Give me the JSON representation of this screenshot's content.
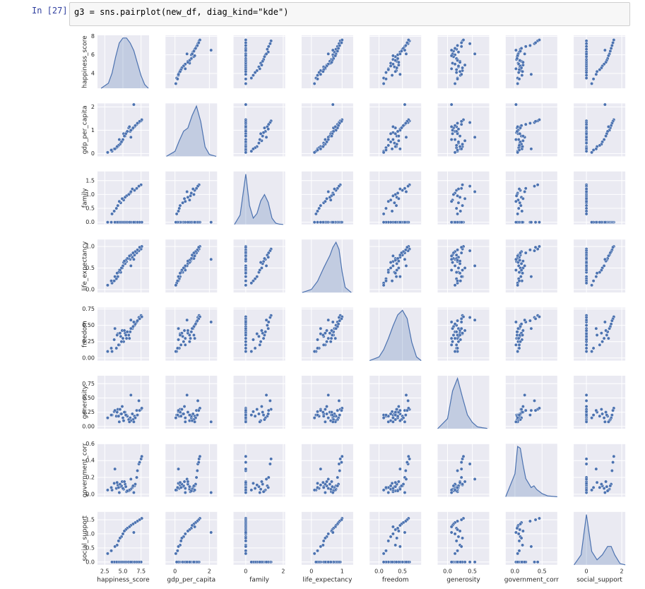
{
  "notebook": {
    "prompt": "In [27]:",
    "code": "g3 = sns.pairplot(new_df, diag_kind=\"kde\")"
  },
  "chart_data": {
    "type": "pairplot",
    "color": "#4c72b0",
    "grid": true,
    "variables": [
      "happiness_score",
      "gdp_per_capita",
      "family",
      "life_expectancy",
      "freedom",
      "generosity",
      "government_corr",
      "social_support"
    ],
    "axes": [
      {
        "xlim": [
          1.5,
          8.6
        ],
        "xticks": [
          {
            "value": 2.5,
            "label": "2.5"
          },
          {
            "value": 5,
            "label": "5.0"
          },
          {
            "value": 7.5,
            "label": "7.5"
          }
        ],
        "ylim": [
          2.4,
          8.1
        ],
        "yticks": [
          4,
          6,
          8
        ]
      },
      {
        "xlim": [
          -0.55,
          2.45
        ],
        "xticks": [
          0,
          2
        ],
        "ylim": [
          -0.12,
          2.15
        ],
        "yticks": [
          0,
          1,
          2
        ]
      },
      {
        "xlim": [
          -0.65,
          2.1
        ],
        "xticks": [
          0,
          2
        ],
        "ylim": [
          -0.08,
          1.83
        ],
        "yticks": [
          {
            "value": 0,
            "label": "0.0"
          },
          {
            "value": 0.5,
            "label": "0.5"
          },
          {
            "value": 1,
            "label": "1.0"
          },
          {
            "value": 1.5,
            "label": "1.5"
          }
        ]
      },
      {
        "xlim": [
          -0.32,
          1.36
        ],
        "xticks": [
          0,
          1
        ],
        "ylim": [
          -0.07,
          1.16
        ],
        "yticks": [
          {
            "value": 0,
            "label": "0.0"
          },
          {
            "value": 0.5,
            "label": "0.5"
          },
          {
            "value": 1,
            "label": "1.0"
          }
        ]
      },
      {
        "xlim": [
          -0.2,
          0.9
        ],
        "xticks": [
          {
            "value": 0,
            "label": "0.0"
          },
          0.5
        ],
        "ylim": [
          -0.04,
          0.77
        ],
        "yticks": [
          {
            "value": 0,
            "label": "0.00"
          },
          0.25,
          {
            "value": 0.5,
            "label": "0.50"
          },
          0.75
        ]
      },
      {
        "xlim": [
          -0.2,
          0.84
        ],
        "xticks": [
          {
            "value": 0,
            "label": "0.0"
          },
          0.5
        ],
        "ylim": [
          -0.04,
          0.89
        ],
        "yticks": [
          {
            "value": 0,
            "label": "0.00"
          },
          0.25,
          {
            "value": 0.5,
            "label": "0.50"
          },
          0.75
        ]
      },
      {
        "xlim": [
          -0.17,
          0.78
        ],
        "xticks": [
          {
            "value": 0,
            "label": "0.0"
          },
          0.5
        ],
        "ylim": [
          -0.03,
          0.6
        ],
        "yticks": [
          {
            "value": 0,
            "label": "0.0"
          },
          0.2,
          0.4,
          0.6
        ]
      },
      {
        "xlim": [
          -0.72,
          2.2
        ],
        "xticks": [
          0,
          2
        ],
        "ylim": [
          -0.1,
          1.78
        ],
        "yticks": [
          {
            "value": 0,
            "label": "0.0"
          },
          0.5,
          {
            "value": 1,
            "label": "1.0"
          },
          1.5
        ]
      }
    ],
    "rows": [
      [
        7.5,
        1.4,
        1.35,
        0.94,
        0.65,
        0.3,
        0.42,
        0
      ],
      [
        7.2,
        1.33,
        1.3,
        0.9,
        0.62,
        0.45,
        0.36,
        0
      ],
      [
        6.9,
        1.25,
        1.22,
        0.85,
        0.55,
        0.28,
        0.2,
        0
      ],
      [
        6.6,
        1.15,
        1.15,
        0.8,
        0.5,
        0.18,
        0.1,
        0
      ],
      [
        6.3,
        1.05,
        1.2,
        0.75,
        0.45,
        0.22,
        0.08,
        0
      ],
      [
        6.0,
        0.95,
        1.05,
        0.7,
        0.4,
        0.15,
        0.05,
        0
      ],
      [
        5.8,
        1.1,
        1.0,
        0.72,
        0.35,
        0.12,
        0.04,
        0
      ],
      [
        5.5,
        0.9,
        0.95,
        0.65,
        0.3,
        0.2,
        0.03,
        0
      ],
      [
        5.3,
        0.75,
        0.9,
        0.6,
        0.38,
        0.25,
        0.12,
        0
      ],
      [
        5.1,
        0.85,
        0.8,
        0.63,
        0.25,
        0.1,
        0.06,
        0
      ],
      [
        4.9,
        0.55,
        0.85,
        0.5,
        0.42,
        0.35,
        0.15,
        0
      ],
      [
        4.7,
        0.45,
        0.7,
        0.4,
        0.33,
        0.22,
        0.09,
        0
      ],
      [
        4.5,
        0.6,
        0.75,
        0.45,
        0.2,
        0.08,
        0.02,
        0
      ],
      [
        4.3,
        0.3,
        0.6,
        0.3,
        0.37,
        0.3,
        0.11,
        0
      ],
      [
        4.1,
        0.25,
        0.5,
        0.25,
        0.15,
        0.18,
        0.07,
        0
      ],
      [
        3.8,
        0.2,
        0.4,
        0.2,
        0.28,
        0.26,
        0.13,
        0
      ],
      [
        3.5,
        0.1,
        0.3,
        0.15,
        0.1,
        0.2,
        0.05,
        0
      ],
      [
        6.1,
        0.7,
        1.1,
        0.55,
        0.58,
        0.55,
        0.18,
        0
      ],
      [
        7.6,
        1.45,
        0,
        1.0,
        0.63,
        0.32,
        0.45,
        1.55
      ],
      [
        7.3,
        1.38,
        0,
        0.98,
        0.6,
        0.28,
        0.38,
        1.5
      ],
      [
        7.0,
        1.3,
        0,
        0.92,
        0.57,
        0.2,
        0.28,
        1.45
      ],
      [
        6.7,
        1.2,
        0,
        0.88,
        0.52,
        0.15,
        0.12,
        1.4
      ],
      [
        6.4,
        1.1,
        0,
        0.85,
        0.48,
        0.12,
        0.1,
        1.35
      ],
      [
        6.1,
        1.0,
        0,
        0.8,
        0.45,
        0.1,
        0.06,
        1.3
      ],
      [
        5.9,
        1.15,
        0,
        0.78,
        0.3,
        0.08,
        0.05,
        1.25
      ],
      [
        5.6,
        0.95,
        0,
        0.72,
        0.4,
        0.18,
        0.04,
        1.2
      ],
      [
        5.4,
        0.85,
        0,
        0.68,
        0.35,
        0.2,
        0.09,
        1.15
      ],
      [
        5.2,
        0.75,
        0,
        0.66,
        0.42,
        0.25,
        0.15,
        1.1
      ],
      [
        5.0,
        0.6,
        0,
        0.55,
        0.3,
        0.15,
        0.07,
        1.0
      ],
      [
        4.8,
        0.5,
        0,
        0.5,
        0.25,
        0.22,
        0.1,
        0.9
      ],
      [
        4.6,
        0.4,
        0,
        0.45,
        0.38,
        0.3,
        0.12,
        0.85
      ],
      [
        4.4,
        0.35,
        0,
        0.4,
        0.2,
        0.18,
        0.08,
        0.75
      ],
      [
        4.2,
        0.3,
        0,
        0.38,
        0.35,
        0.25,
        0.14,
        0.6
      ],
      [
        3.9,
        0.2,
        0,
        0.3,
        0.45,
        0.28,
        0.3,
        0.55
      ],
      [
        3.4,
        0.15,
        0,
        0.2,
        0.15,
        0.2,
        0.08,
        0.4
      ],
      [
        2.9,
        0.05,
        0,
        0.1,
        0.1,
        0.15,
        0.05,
        0.3
      ],
      [
        6.5,
        2.1,
        0,
        0.7,
        0.55,
        0.08,
        0.02,
        1.05
      ]
    ],
    "kde": [
      {
        "x": [
          2.0,
          3.0,
          3.5,
          4.0,
          4.5,
          5.0,
          5.5,
          6.0,
          6.5,
          7.0,
          7.5,
          8.0,
          8.5
        ],
        "density": [
          0,
          0.04,
          0.12,
          0.25,
          0.36,
          0.4,
          0.4,
          0.36,
          0.3,
          0.2,
          0.1,
          0.03,
          0
        ]
      },
      {
        "x": [
          -0.5,
          0,
          0.25,
          0.5,
          0.75,
          1.0,
          1.25,
          1.5,
          1.75,
          2.0,
          2.4
        ],
        "density": [
          0,
          0.08,
          0.25,
          0.4,
          0.45,
          0.65,
          0.8,
          0.55,
          0.15,
          0.03,
          0
        ]
      },
      {
        "x": [
          -0.6,
          -0.3,
          0,
          0.2,
          0.4,
          0.6,
          0.8,
          1.0,
          1.2,
          1.4,
          1.6,
          1.8,
          2.0
        ],
        "density": [
          0,
          0.3,
          1.6,
          0.6,
          0.2,
          0.35,
          0.75,
          0.95,
          0.7,
          0.2,
          0.04,
          0.01,
          0
        ]
      },
      {
        "x": [
          -0.3,
          0,
          0.2,
          0.4,
          0.5,
          0.6,
          0.7,
          0.8,
          0.9,
          1.0,
          1.1,
          1.3
        ],
        "density": [
          0,
          0.15,
          0.55,
          1.2,
          1.5,
          1.8,
          2.2,
          2.45,
          2.1,
          1.0,
          0.25,
          0
        ]
      },
      {
        "x": [
          -0.2,
          0,
          0.1,
          0.2,
          0.3,
          0.4,
          0.5,
          0.6,
          0.7,
          0.8,
          0.9
        ],
        "density": [
          0,
          0.2,
          0.6,
          1.2,
          1.9,
          2.5,
          2.75,
          2.3,
          1.0,
          0.2,
          0
        ]
      },
      {
        "x": [
          -0.2,
          0,
          0.1,
          0.2,
          0.3,
          0.4,
          0.5,
          0.6,
          0.7,
          0.8
        ],
        "density": [
          0,
          0.8,
          3.0,
          4.0,
          2.5,
          1.1,
          0.5,
          0.15,
          0.08,
          0.02
        ]
      },
      {
        "x": [
          -0.17,
          0,
          0.05,
          0.1,
          0.15,
          0.2,
          0.3,
          0.35,
          0.4,
          0.5,
          0.6,
          0.78
        ],
        "density": [
          0,
          2.5,
          5.5,
          5.3,
          3.5,
          2.0,
          1.0,
          1.2,
          0.8,
          0.35,
          0.1,
          0
        ]
      },
      {
        "x": [
          -0.7,
          -0.3,
          0,
          0.3,
          0.6,
          0.9,
          1.2,
          1.4,
          1.6,
          1.9,
          2.2
        ],
        "density": [
          0,
          0.3,
          1.5,
          0.4,
          0.15,
          0.3,
          0.55,
          0.55,
          0.3,
          0.04,
          0
        ]
      }
    ]
  }
}
